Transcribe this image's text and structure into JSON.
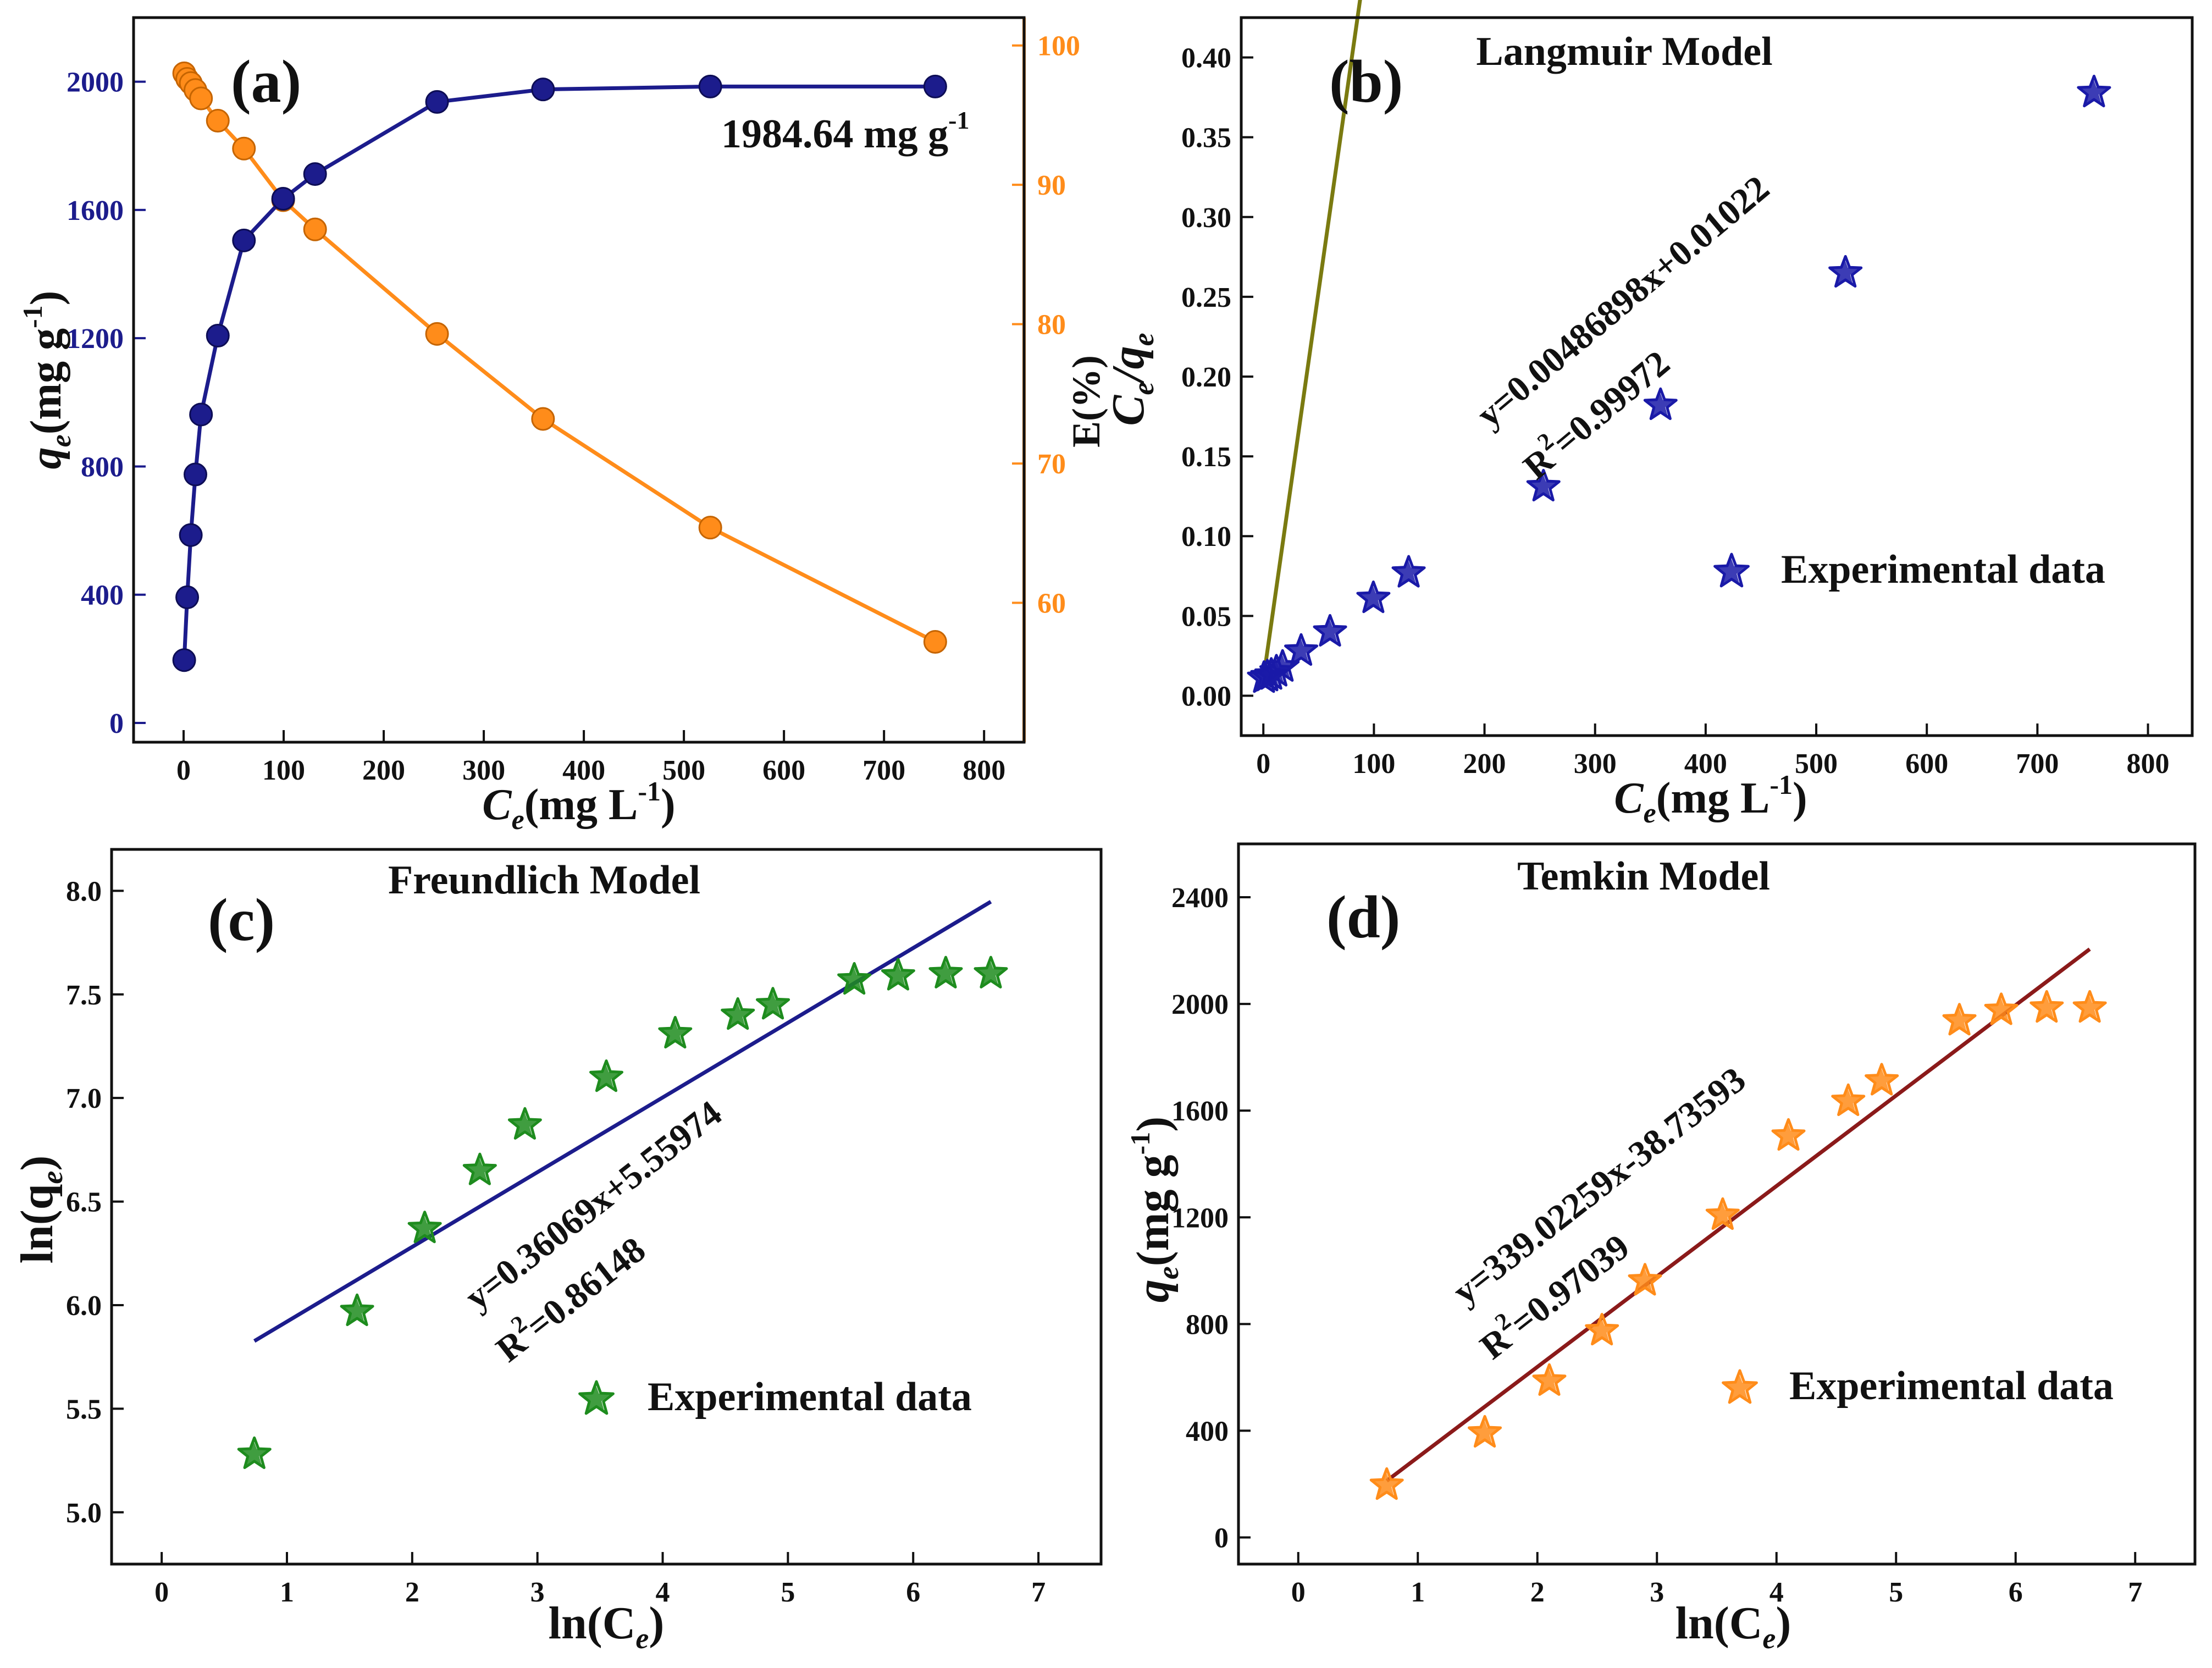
{
  "colors": {
    "navy": "#1c1c8c",
    "orange": "#ff8c1a",
    "olive": "#7a7a10",
    "blue_star": "#1a1aa8",
    "green": "#1e8c1e",
    "dark_red": "#8b1a1a",
    "frame": "#111111"
  },
  "chart_data": [
    {
      "id": "a",
      "type": "line",
      "panel_label": "(a)",
      "xlabel_main": "C",
      "xlabel_sub": "e",
      "xlabel_rest": "(mg L",
      "xlabel_sup": "-1",
      "xlabel_close": ")",
      "ylabel_main": "q",
      "ylabel_sub": "e",
      "ylabel_rest": "(mg g",
      "ylabel_sup": "-1",
      "ylabel_close": ")",
      "y2label": "E(%)",
      "xlim": [
        -50,
        840
      ],
      "ylim": [
        -60,
        2200
      ],
      "y2lim": [
        50,
        102
      ],
      "xticks": [
        0,
        100,
        200,
        300,
        400,
        500,
        600,
        700,
        800
      ],
      "yticks": [
        0,
        400,
        800,
        1200,
        1600,
        2000
      ],
      "y2ticks": [
        60,
        70,
        80,
        90,
        100
      ],
      "annotation": "1984.64 mg g",
      "annotation_sup": "-1",
      "series": [
        {
          "name": "qe",
          "axis": "left",
          "x": [
            0.6,
            3.6,
            7.2,
            11.8,
            17.4,
            34.2,
            60.3,
            99.5,
            131.4,
            253.3,
            359.2,
            526.4,
            751.2
          ],
          "y": [
            196,
            392,
            586,
            775,
            962,
            1208,
            1505,
            1635,
            1712,
            1937,
            1976,
            1985,
            1985
          ]
        },
        {
          "name": "E",
          "axis": "right",
          "x": [
            0.6,
            3.6,
            7.2,
            11.8,
            17.4,
            34.2,
            60.3,
            99.5,
            131.4,
            253.3,
            359.2,
            526.4,
            751.2
          ],
          "y": [
            98.0,
            97.6,
            97.3,
            96.8,
            96.2,
            94.6,
            92.6,
            88.9,
            86.8,
            79.3,
            73.2,
            65.4,
            57.2
          ]
        }
      ]
    },
    {
      "id": "b",
      "type": "scatter",
      "panel_label": "(b)",
      "title": "Langmuir Model",
      "xlabel_main": "C",
      "xlabel_sub": "e",
      "xlabel_rest": "(mg L",
      "xlabel_sup": "-1",
      "xlabel_close": ")",
      "ylabel_main": "C",
      "ylabel_sub": "e",
      "ylabel_mid": "/q",
      "ylabel_sub2": "e",
      "xlim": [
        -20,
        840
      ],
      "ylim": [
        -0.025,
        0.425
      ],
      "xticks": [
        0,
        100,
        200,
        300,
        400,
        500,
        600,
        700,
        800
      ],
      "yticks": [
        0.0,
        0.05,
        0.1,
        0.15,
        0.2,
        0.25,
        0.3,
        0.35,
        0.4
      ],
      "equation": "y=0.00486898x+0.01022",
      "r2_pre": "R",
      "r2_sup": "2",
      "r2_value": "=0.99972",
      "legend_label": "Experimental data",
      "fit": {
        "slope": 0.00486898,
        "intercept": 0.01022,
        "x_range": [
          0.6,
          751.2
        ]
      },
      "series": [
        {
          "name": "Experimental data",
          "x": [
            0.6,
            3.6,
            7.2,
            11.8,
            17.4,
            34.2,
            60.3,
            99.5,
            131.4,
            253.3,
            359.2,
            526.4,
            751.2
          ],
          "y": [
            0.011,
            0.012,
            0.013,
            0.015,
            0.018,
            0.028,
            0.04,
            0.061,
            0.077,
            0.131,
            0.182,
            0.265,
            0.378
          ]
        }
      ]
    },
    {
      "id": "c",
      "type": "scatter",
      "panel_label": "(c)",
      "title": "Freundlich Model",
      "xlabel_main": "ln(C",
      "xlabel_sub": "e",
      "xlabel_close": ")",
      "ylabel_main": "ln(q",
      "ylabel_sub": "e",
      "ylabel_close": ")",
      "xlim": [
        -0.4,
        7.5
      ],
      "ylim": [
        4.75,
        8.2
      ],
      "xticks": [
        0,
        1,
        2,
        3,
        4,
        5,
        6,
        7
      ],
      "yticks": [
        5.0,
        5.5,
        6.0,
        6.5,
        7.0,
        7.5,
        8.0
      ],
      "equation": "y=0.36069x+5.55974",
      "r2_pre": "R",
      "r2_sup": "2",
      "r2_value": "=0.86148",
      "legend_label": "Experimental data",
      "fit": {
        "slope": 0.36069,
        "intercept": 5.55974,
        "x_range": [
          0.74,
          6.62
        ]
      },
      "series": [
        {
          "name": "Experimental data",
          "x": [
            0.74,
            1.56,
            2.1,
            2.54,
            2.9,
            3.55,
            4.1,
            4.6,
            4.88,
            5.53,
            5.88,
            6.26,
            6.62
          ],
          "y": [
            5.28,
            5.97,
            6.37,
            6.65,
            6.87,
            7.1,
            7.31,
            7.4,
            7.45,
            7.57,
            7.59,
            7.6,
            7.6
          ]
        }
      ]
    },
    {
      "id": "d",
      "type": "scatter",
      "panel_label": "(d)",
      "title": "Temkin Model",
      "xlabel_main": "ln(C",
      "xlabel_sub": "e",
      "xlabel_close": ")",
      "ylabel_main": "q",
      "ylabel_sub": "e",
      "ylabel_rest": "(mg g",
      "ylabel_sup": "-1",
      "ylabel_close": ")",
      "xlim": [
        -0.5,
        7.5
      ],
      "ylim": [
        -100,
        2600
      ],
      "xticks": [
        0,
        1,
        2,
        3,
        4,
        5,
        6,
        7
      ],
      "yticks": [
        0,
        400,
        800,
        1200,
        1600,
        2000,
        2400
      ],
      "equation": "y=339.02259x-38.73593",
      "r2_pre": "R",
      "r2_sup": "2",
      "r2_value": "=0.97039",
      "legend_label": "Experimental data",
      "fit": {
        "slope": 339.02259,
        "intercept": -38.73593,
        "x_range": [
          0.74,
          6.62
        ]
      },
      "series": [
        {
          "name": "Experimental data",
          "x": [
            0.74,
            1.56,
            2.1,
            2.54,
            2.9,
            3.55,
            4.1,
            4.6,
            4.88,
            5.53,
            5.88,
            6.26,
            6.62
          ],
          "y": [
            196,
            392,
            586,
            775,
            962,
            1208,
            1505,
            1635,
            1712,
            1937,
            1976,
            1985,
            1985
          ]
        }
      ]
    }
  ]
}
